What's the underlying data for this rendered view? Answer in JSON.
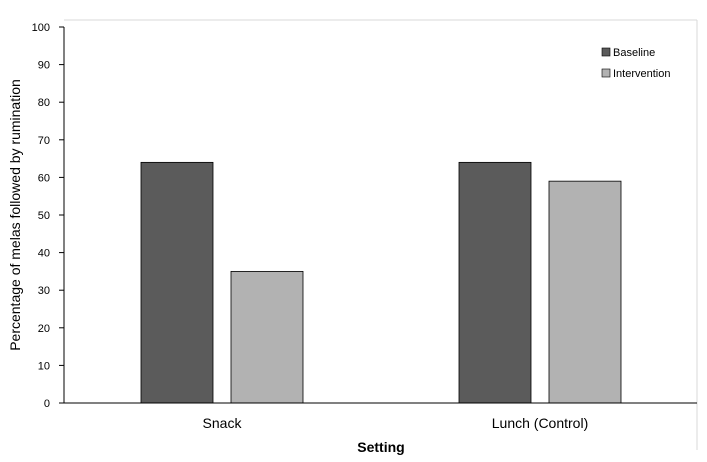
{
  "chart_data": {
    "type": "bar",
    "title": "",
    "xlabel": "Setting",
    "ylabel": "Percentage of melas followed by rumination",
    "categories": [
      "Snack",
      "Lunch (Control)"
    ],
    "series": [
      {
        "name": "Baseline",
        "values": [
          64,
          64
        ]
      },
      {
        "name": "Intervention",
        "values": [
          35,
          59
        ]
      }
    ],
    "ylim": [
      0,
      100
    ],
    "yticks": [
      0,
      10,
      20,
      30,
      40,
      50,
      60,
      70,
      80,
      90,
      100
    ],
    "grid": false,
    "legend_position": "top-right",
    "colors": {
      "Baseline": "#5b5b5b",
      "Intervention": "#b2b2b2",
      "bar_edge": "#000000",
      "axis": "#000000",
      "frame": "#d9d9d9"
    }
  }
}
